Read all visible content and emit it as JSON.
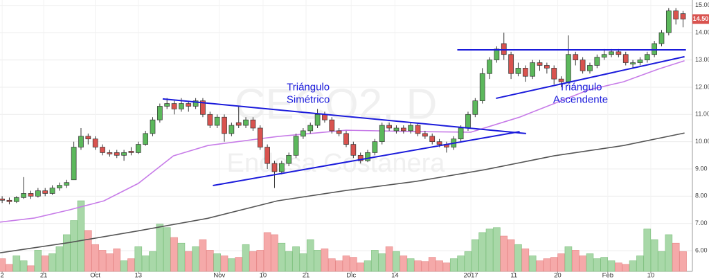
{
  "chart_data": {
    "type": "candlestick",
    "watermark": [
      "CECO2, D",
      "Endesa Costanera"
    ],
    "xlim": [
      -0.3,
      96.3
    ],
    "xticks": [
      {
        "value": 0,
        "label": "2"
      },
      {
        "value": 5.8,
        "label": "21"
      },
      {
        "value": 13,
        "label": "Oct"
      },
      {
        "value": 19,
        "label": "13"
      },
      {
        "value": 30.3,
        "label": "Nov"
      },
      {
        "value": 36.4,
        "label": "10"
      },
      {
        "value": 42.4,
        "label": "21"
      },
      {
        "value": 48.7,
        "label": "Dic"
      },
      {
        "value": 54.8,
        "label": "14"
      },
      {
        "value": 65.4,
        "label": "2017"
      },
      {
        "value": 71.4,
        "label": "11"
      },
      {
        "value": 77.5,
        "label": "20"
      },
      {
        "value": 84.5,
        "label": "Feb"
      },
      {
        "value": 90.5,
        "label": "10"
      }
    ],
    "ylim": [
      5.24,
      15.2
    ],
    "yticks": [
      {
        "value": 6,
        "label": "6.00"
      },
      {
        "value": 7,
        "label": "7.00"
      },
      {
        "value": 8,
        "label": "8.00"
      },
      {
        "value": 9,
        "label": "9.00"
      },
      {
        "value": 10,
        "label": "10.00"
      },
      {
        "value": 11,
        "label": "11.00"
      },
      {
        "value": 12,
        "label": "12.00"
      },
      {
        "value": 13,
        "label": "13.00"
      },
      {
        "value": 14,
        "label": "14.00"
      },
      {
        "value": 15,
        "label": "15.00"
      }
    ],
    "grid": true,
    "up_color": "#5cb85c",
    "down_color": "#d9534f",
    "ohlc": [
      [
        7.9,
        8.0,
        7.75,
        7.85
      ],
      [
        7.85,
        7.95,
        7.7,
        7.8
      ],
      [
        7.8,
        8.0,
        7.75,
        7.95
      ],
      [
        7.95,
        8.7,
        7.9,
        8.1
      ],
      [
        8.1,
        8.2,
        7.9,
        8.0
      ],
      [
        8.0,
        8.3,
        7.95,
        8.2
      ],
      [
        8.2,
        8.3,
        8.0,
        8.1
      ],
      [
        8.1,
        8.4,
        8.05,
        8.3
      ],
      [
        8.3,
        8.5,
        8.2,
        8.4
      ],
      [
        8.4,
        8.6,
        8.3,
        8.5
      ],
      [
        8.6,
        10.0,
        8.6,
        9.8
      ],
      [
        9.8,
        10.5,
        9.7,
        10.2
      ],
      [
        10.2,
        10.3,
        9.9,
        10.1
      ],
      [
        10.1,
        10.2,
        9.7,
        9.8
      ],
      [
        9.8,
        9.9,
        9.5,
        9.6
      ],
      [
        9.6,
        9.7,
        9.45,
        9.55
      ],
      [
        9.6,
        9.7,
        9.4,
        9.5
      ],
      [
        9.5,
        9.7,
        9.3,
        9.6
      ],
      [
        9.65,
        9.8,
        9.5,
        9.6
      ],
      [
        9.6,
        10.0,
        9.55,
        9.9
      ],
      [
        9.9,
        10.4,
        9.85,
        10.3
      ],
      [
        10.3,
        10.9,
        10.2,
        10.8
      ],
      [
        10.8,
        11.4,
        10.7,
        11.3
      ],
      [
        11.3,
        11.6,
        11.2,
        11.4
      ],
      [
        11.4,
        11.5,
        11.0,
        11.2
      ],
      [
        11.2,
        11.6,
        11.1,
        11.4
      ],
      [
        11.4,
        11.5,
        11.1,
        11.3
      ],
      [
        11.3,
        11.6,
        11.2,
        11.5
      ],
      [
        11.5,
        11.6,
        10.9,
        11.0
      ],
      [
        11.0,
        11.1,
        10.5,
        10.6
      ],
      [
        10.6,
        11.0,
        10.5,
        10.9
      ],
      [
        10.9,
        11.0,
        10.0,
        10.3
      ],
      [
        10.3,
        10.7,
        10.2,
        10.6
      ],
      [
        10.7,
        11.3,
        10.5,
        10.6
      ],
      [
        10.6,
        10.9,
        10.5,
        10.8
      ],
      [
        10.8,
        10.9,
        10.4,
        10.5
      ],
      [
        10.5,
        10.6,
        9.7,
        9.8
      ],
      [
        9.8,
        9.9,
        9.0,
        9.2
      ],
      [
        9.2,
        9.3,
        8.3,
        8.9
      ],
      [
        8.9,
        9.3,
        8.8,
        9.2
      ],
      [
        9.2,
        9.6,
        9.1,
        9.5
      ],
      [
        9.5,
        10.3,
        9.4,
        10.2
      ],
      [
        10.2,
        10.5,
        10.1,
        10.4
      ],
      [
        10.4,
        10.7,
        10.3,
        10.6
      ],
      [
        10.6,
        11.2,
        10.5,
        11.0
      ],
      [
        11.0,
        11.1,
        10.7,
        10.8
      ],
      [
        10.8,
        10.9,
        10.3,
        10.4
      ],
      [
        10.4,
        10.5,
        10.2,
        10.3
      ],
      [
        10.3,
        10.4,
        9.8,
        9.9
      ],
      [
        9.9,
        10.0,
        9.4,
        9.5
      ],
      [
        9.5,
        9.6,
        9.2,
        9.3
      ],
      [
        9.3,
        9.7,
        9.25,
        9.6
      ],
      [
        9.6,
        10.1,
        9.5,
        10.0
      ],
      [
        10.0,
        10.7,
        9.9,
        10.6
      ],
      [
        10.6,
        10.7,
        10.4,
        10.5
      ],
      [
        10.4,
        10.6,
        10.3,
        10.5
      ],
      [
        10.5,
        10.6,
        10.3,
        10.4
      ],
      [
        10.4,
        10.7,
        10.3,
        10.6
      ],
      [
        10.6,
        10.7,
        10.2,
        10.3
      ],
      [
        10.3,
        10.4,
        10.1,
        10.2
      ],
      [
        10.2,
        10.3,
        9.9,
        10.0
      ],
      [
        10.0,
        10.1,
        9.8,
        9.9
      ],
      [
        9.9,
        10.0,
        9.6,
        9.8
      ],
      [
        9.8,
        10.2,
        9.7,
        10.1
      ],
      [
        10.1,
        10.6,
        10.0,
        10.5
      ],
      [
        10.5,
        11.1,
        10.4,
        11.0
      ],
      [
        11.0,
        11.6,
        10.9,
        11.5
      ],
      [
        11.5,
        12.7,
        11.4,
        12.5
      ],
      [
        12.5,
        13.1,
        12.3,
        13.0
      ],
      [
        13.0,
        13.5,
        12.9,
        13.4
      ],
      [
        13.6,
        14.0,
        13.0,
        13.2
      ],
      [
        13.2,
        13.3,
        12.3,
        12.5
      ],
      [
        12.5,
        12.9,
        12.4,
        12.7
      ],
      [
        12.7,
        12.8,
        12.2,
        12.4
      ],
      [
        12.4,
        13.0,
        12.3,
        12.9
      ],
      [
        12.9,
        13.0,
        12.6,
        12.8
      ],
      [
        12.8,
        12.9,
        12.5,
        12.7
      ],
      [
        12.7,
        12.8,
        12.1,
        12.3
      ],
      [
        12.3,
        12.4,
        12.0,
        12.2
      ],
      [
        12.2,
        13.9,
        12.1,
        13.2
      ],
      [
        13.2,
        13.3,
        12.8,
        13.0
      ],
      [
        13.0,
        13.1,
        12.5,
        12.6
      ],
      [
        12.6,
        12.9,
        12.5,
        12.8
      ],
      [
        12.8,
        13.2,
        12.7,
        13.1
      ],
      [
        13.1,
        13.4,
        13.0,
        13.2
      ],
      [
        13.2,
        13.4,
        13.1,
        13.3
      ],
      [
        13.3,
        13.4,
        13.1,
        13.2
      ],
      [
        13.2,
        13.3,
        12.8,
        12.9
      ],
      [
        12.85,
        13.0,
        12.7,
        12.9
      ],
      [
        12.9,
        13.1,
        12.8,
        13.0
      ],
      [
        13.0,
        13.3,
        12.9,
        13.2
      ],
      [
        13.2,
        13.7,
        13.1,
        13.6
      ],
      [
        13.6,
        14.1,
        13.5,
        14.0
      ],
      [
        14.0,
        14.9,
        13.9,
        14.8
      ],
      [
        14.8,
        14.9,
        14.3,
        14.5
      ],
      [
        14.7,
        14.8,
        14.2,
        14.5
      ]
    ],
    "vlim": [
      0,
      100
    ],
    "volume": [
      18,
      10,
      22,
      15,
      8,
      30,
      22,
      25,
      35,
      52,
      72,
      100,
      58,
      38,
      30,
      25,
      32,
      15,
      18,
      35,
      22,
      28,
      67,
      62,
      48,
      40,
      28,
      35,
      45,
      30,
      25,
      22,
      18,
      20,
      38,
      28,
      30,
      55,
      52,
      40,
      28,
      35,
      25,
      45,
      30,
      32,
      18,
      15,
      22,
      20,
      12,
      15,
      30,
      25,
      35,
      28,
      22,
      18,
      15,
      14,
      20,
      15,
      12,
      18,
      22,
      28,
      45,
      55,
      60,
      62,
      50,
      45,
      38,
      32,
      22,
      15,
      18,
      20,
      25,
      35,
      30,
      22,
      25,
      18,
      20,
      15,
      12,
      10,
      15,
      22,
      60,
      45,
      28,
      52,
      40,
      28
    ],
    "ma_short": {
      "color": "#c77ce8",
      "x": [
        -0.3,
        4.5,
        9.4,
        14.2,
        19,
        23.9,
        28.7,
        38.4,
        48,
        57.7,
        65.4,
        72.2,
        77,
        81.8,
        86.7,
        91.5,
        95.2
      ],
      "values": [
        7.05,
        7.2,
        7.5,
        7.83,
        8.47,
        9.48,
        9.86,
        10.19,
        10.42,
        10.37,
        10.35,
        10.9,
        11.4,
        11.9,
        12.2,
        12.66,
        12.97
      ]
    },
    "ma_long": {
      "color": "#555555",
      "x": [
        -0.3,
        9.4,
        19,
        28.7,
        38.4,
        48,
        57.7,
        67.3,
        77,
        86.7,
        95.2
      ],
      "values": [
        5.92,
        6.3,
        6.73,
        7.19,
        7.83,
        8.21,
        8.54,
        8.97,
        9.48,
        9.86,
        10.32
      ]
    },
    "trendlines": [
      {
        "x": [
          22.4,
          73.1
        ],
        "y": [
          11.57,
          10.3
        ]
      },
      {
        "x": [
          29.4,
          72.2
        ],
        "y": [
          8.39,
          10.37
        ]
      },
      {
        "x": [
          63.5,
          95.4
        ],
        "y": [
          13.37,
          13.37
        ]
      },
      {
        "x": [
          68.9,
          95.2
        ],
        "y": [
          11.59,
          13.12
        ]
      }
    ],
    "trend_color": "#1a1adb",
    "annotations": [
      {
        "text": [
          "Triángulo",
          "Simétrico"
        ],
        "x": 42.7,
        "y": 11.7
      },
      {
        "text": [
          "Triángulo",
          "Ascendente"
        ],
        "x": 80.7,
        "y": 11.7
      }
    ],
    "last_price": {
      "value": 14.5,
      "label": "14.50"
    }
  }
}
